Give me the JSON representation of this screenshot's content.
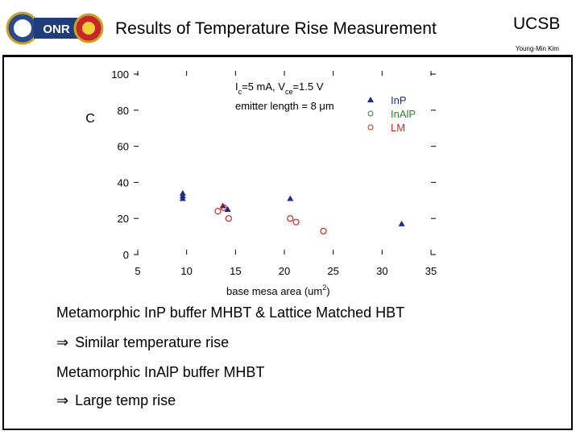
{
  "header": {
    "title": "Results of Temperature Rise Measurement",
    "institution": "UCSB",
    "author": "Young-Min Kim"
  },
  "logo": {
    "text": "ONR"
  },
  "chart_data": {
    "type": "scatter",
    "xlabel": "base mesa area (um",
    "xlabel_sup": "2",
    "xlabel_end": ")",
    "ylabel": "C",
    "xlim": [
      5,
      35
    ],
    "ylim": [
      0,
      100
    ],
    "xticks": [
      "5",
      "10",
      "15",
      "20",
      "25",
      "30",
      "35"
    ],
    "yticks": [
      "0",
      "20",
      "40",
      "60",
      "80",
      "100"
    ],
    "annotation_line1": "I",
    "annotation_line1_sub": "c",
    "annotation_line1_mid": "=5 mA, V",
    "annotation_line1_sub2": "ce",
    "annotation_line1_end": "=1.5 V",
    "annotation_line2": "emitter length = 8 μm",
    "series": [
      {
        "name": "InP",
        "color": "#1f2a8a",
        "marker": "triangle",
        "x": [
          9.6,
          9.6,
          9.6,
          13.7,
          14.2,
          20.6,
          32.0
        ],
        "y": [
          34,
          32.5,
          31,
          27,
          25,
          31,
          17
        ]
      },
      {
        "name": "InAlP",
        "color": "#2e7d32",
        "marker": "circle",
        "x": [],
        "y": []
      },
      {
        "name": "LM",
        "color": "#c62828",
        "marker": "circle",
        "x": [
          13.2,
          13.8,
          14.3,
          20.6,
          21.2,
          24.0
        ],
        "y": [
          24,
          26,
          20,
          20,
          18,
          13
        ]
      }
    ],
    "legend_position": "right"
  },
  "bullets": [
    {
      "arrow": false,
      "text": "Metamorphic InP buffer MHBT & Lattice Matched HBT"
    },
    {
      "arrow": true,
      "text": "Similar temperature rise"
    },
    {
      "arrow": false,
      "text": "Metamorphic InAlP buffer MHBT"
    },
    {
      "arrow": true,
      "text": "Large temp rise"
    }
  ],
  "symbols": {
    "implies": "⇒"
  }
}
